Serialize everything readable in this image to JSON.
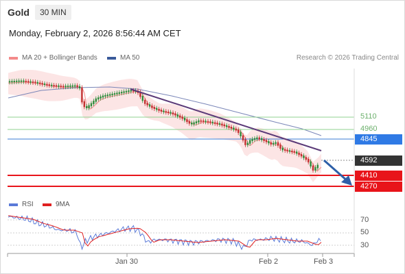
{
  "header": {
    "title": "Gold",
    "interval": "30 MIN"
  },
  "timestamp": "Monday, February 2, 2026 8:56:44 AM CET",
  "legend": {
    "bb_label": "MA 20 + Bollinger Bands",
    "ma50_label": "MA 50",
    "credit": "Research © 2026 Trading Central"
  },
  "rsi_legend": {
    "rsi_label": "RSI",
    "ma_label": "9MA"
  },
  "colors": {
    "bb": "#f48a8a",
    "ma50": "#3a5a9a",
    "rsi": "#5a7ad8",
    "rsi_ma": "#e02020",
    "up": "#2e8b3a",
    "down": "#c23030",
    "resistance": "#8fd18f",
    "support": "#e8141a",
    "pivot": "#3a7bd5",
    "current": "#333333",
    "trend": "#5a3a7a"
  },
  "levels": [
    {
      "value": "5110",
      "kind": "resistance"
    },
    {
      "value": "4960",
      "kind": "resistance"
    },
    {
      "value": "4845",
      "kind": "pivot"
    },
    {
      "value": "4592",
      "kind": "current"
    },
    {
      "value": "4410",
      "kind": "support"
    },
    {
      "value": "4270",
      "kind": "support"
    }
  ],
  "rsi_axis": [
    "70",
    "50",
    "30"
  ],
  "x_axis": [
    "Jan 30",
    "Feb 2",
    "Feb 3"
  ],
  "chart_data": {
    "type": "candlestick",
    "price_levels": {
      "resistance": [
        5110,
        4960
      ],
      "pivot": 4845,
      "last": 4592,
      "support": [
        4410,
        4270
      ]
    },
    "indicators": [
      "MA 20 + Bollinger Bands",
      "MA 50",
      "RSI",
      "9MA"
    ],
    "rsi_levels": [
      70,
      50,
      30
    ],
    "x_ticks": [
      "Jan 30",
      "Feb 2",
      "Feb 3"
    ]
  }
}
